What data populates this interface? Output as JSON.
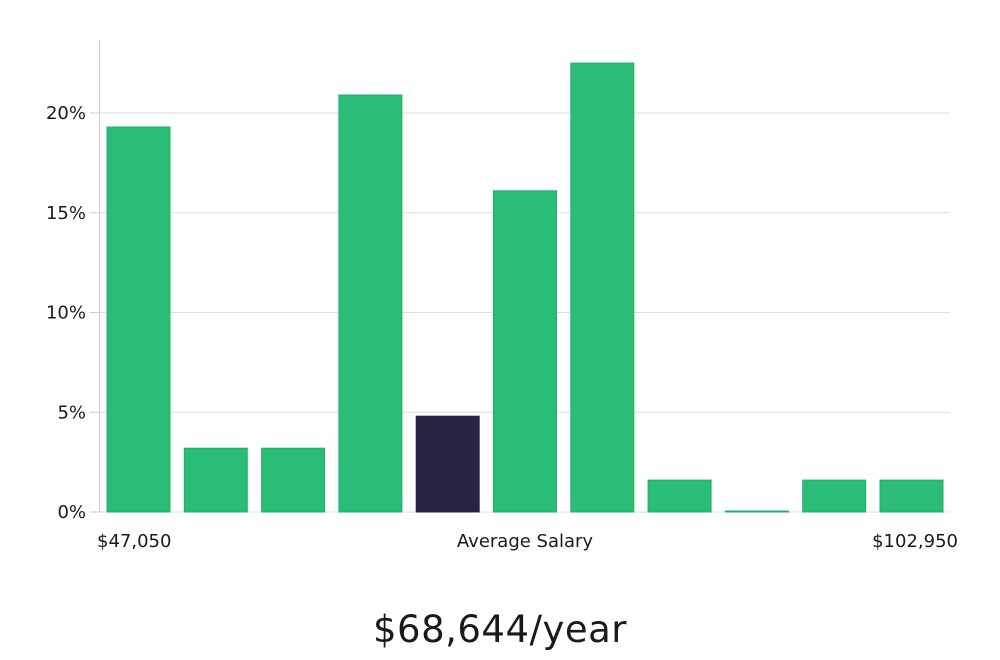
{
  "chart_data": {
    "type": "bar",
    "xlabel": "Average Salary",
    "x_start_label": "$47,050",
    "x_end_label": "$102,950",
    "ylim": [
      0,
      23.6
    ],
    "yticks": [
      0,
      5,
      10,
      15,
      20
    ],
    "ytick_labels": [
      "0%",
      "5%",
      "10%",
      "15%",
      "20%"
    ],
    "grid": true,
    "values": [
      19.3,
      3.2,
      3.2,
      20.9,
      4.8,
      16.1,
      22.5,
      1.6,
      0.05,
      1.6,
      1.6
    ],
    "highlight_index": 4,
    "colors": {
      "bar": "#2abd77",
      "bar_edge": "#22b06c",
      "highlight": "#272444",
      "grid": "#dedede",
      "axis": "#cccccc"
    }
  },
  "headline": "$68,644/year"
}
